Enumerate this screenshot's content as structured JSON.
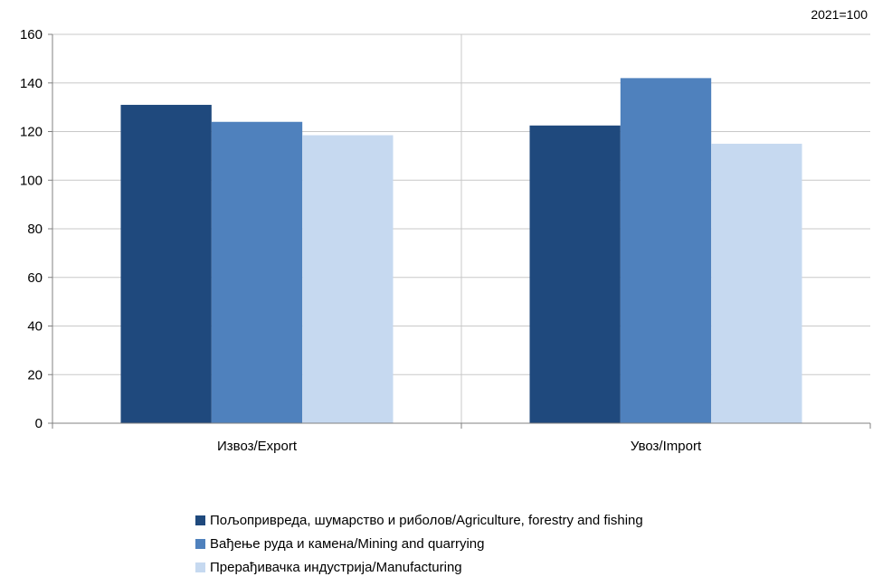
{
  "note": "2021=100",
  "chart_data": {
    "type": "bar",
    "categories": [
      "Извоз/Export",
      "Увоз/Import"
    ],
    "series": [
      {
        "name": "Пољопривреда, шумарство и риболов/Agriculture, forestry and fishing",
        "color": "#1f497d",
        "values": [
          131,
          122.5
        ]
      },
      {
        "name": "Вађење руда и камена/Mining and quarrying",
        "color": "#4f81bd",
        "values": [
          124,
          142
        ]
      },
      {
        "name": "Прерађивачка индустрија/Manufacturing",
        "color": "#c6d9f0",
        "values": [
          118.5,
          115
        ]
      }
    ],
    "ylim": [
      0,
      160
    ],
    "yticks": [
      "0",
      "20",
      "40",
      "60",
      "80",
      "100",
      "120",
      "140",
      "160"
    ],
    "grid": true,
    "legend_position": "bottom"
  }
}
